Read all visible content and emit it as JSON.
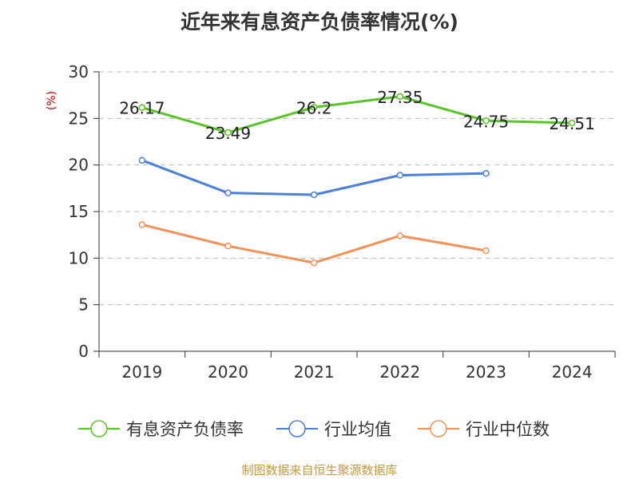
{
  "chart_data": {
    "type": "line",
    "title": "近年来有息资产负债率情况(%)",
    "ylabel": "(%)",
    "categories": [
      "2019",
      "2020",
      "2021",
      "2022",
      "2023",
      "2024"
    ],
    "ylim": [
      0,
      30
    ],
    "yticks": [
      0,
      5,
      10,
      15,
      20,
      25,
      30
    ],
    "grid": true,
    "legend_position": "bottom",
    "series": [
      {
        "name": "有息资产负债率",
        "color": "#5ac427",
        "values": [
          26.17,
          23.49,
          26.2,
          27.35,
          24.75,
          24.51
        ],
        "labels": [
          "26.17",
          "23.49",
          "26.2",
          "27.35",
          "24.75",
          "24.51"
        ]
      },
      {
        "name": "行业均值",
        "color": "#4d7fd8",
        "values": [
          20.5,
          17.0,
          16.8,
          18.9,
          19.1,
          null
        ]
      },
      {
        "name": "行业中位数",
        "color": "#f59157",
        "values": [
          13.6,
          11.3,
          9.5,
          12.4,
          10.8,
          null
        ]
      }
    ],
    "source": "制图数据来自恒生聚源数据库"
  }
}
